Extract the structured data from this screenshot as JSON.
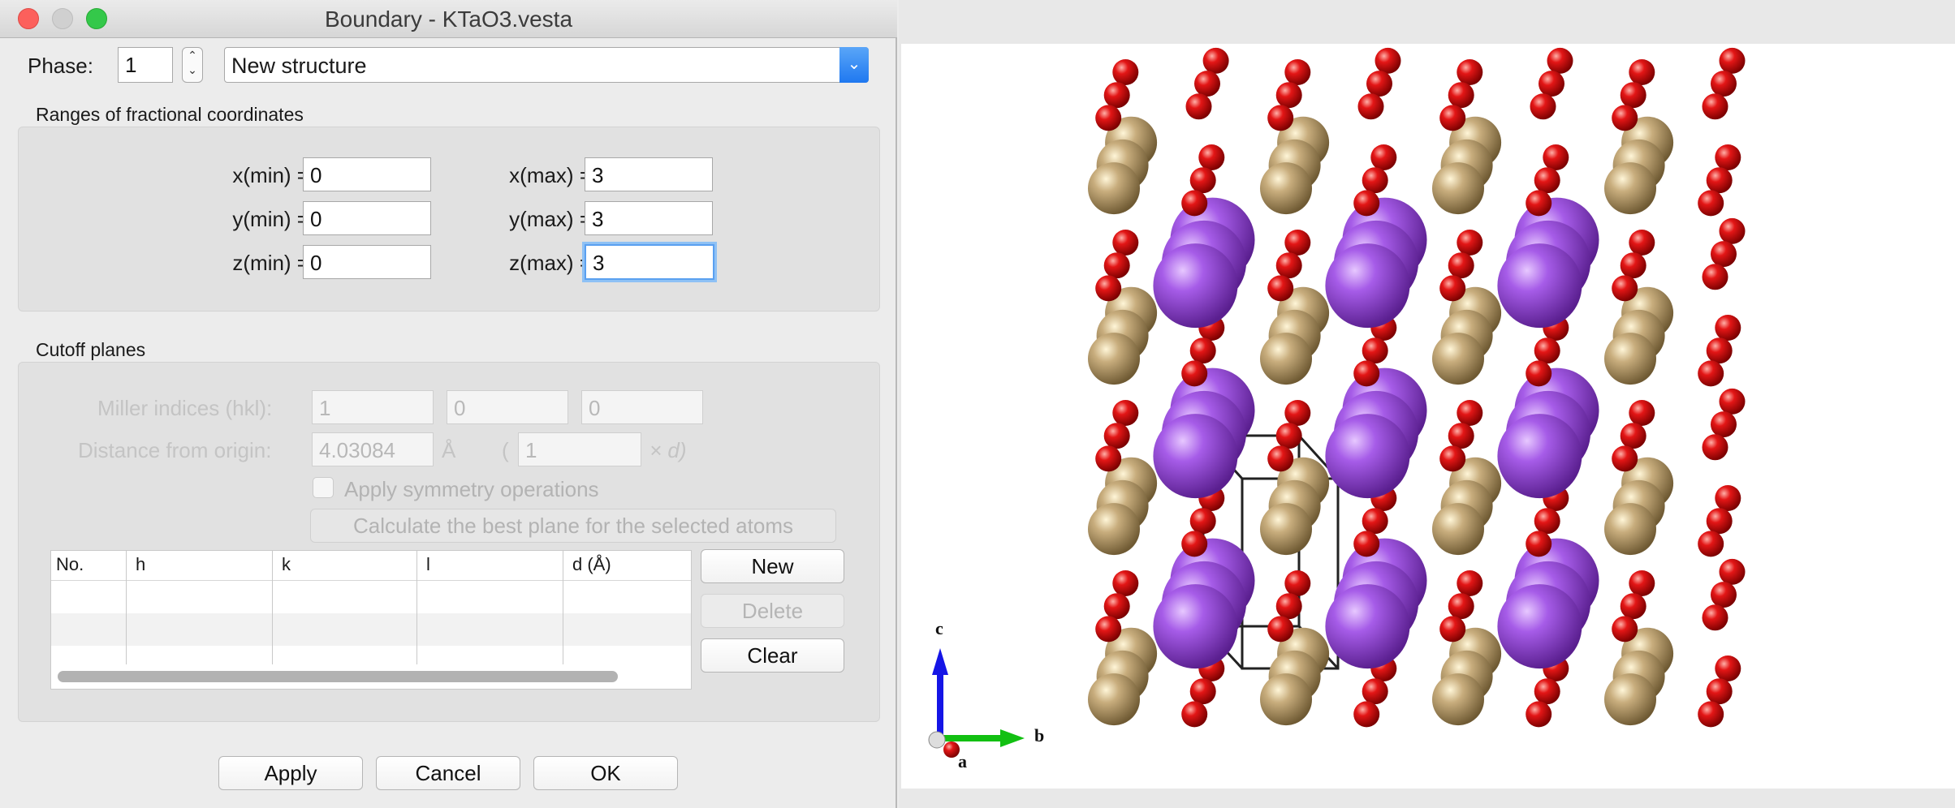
{
  "window": {
    "title": "Boundary - KTaO3.vesta"
  },
  "phase": {
    "label": "Phase:",
    "value": "1",
    "structure": "New structure"
  },
  "ranges": {
    "group_label": "Ranges of fractional coordinates",
    "x_min_label": "x(min) =",
    "x_min": "0",
    "x_max_label": "x(max) =",
    "x_max": "3",
    "y_min_label": "y(min) =",
    "y_min": "0",
    "y_max_label": "y(max) =",
    "y_max": "3",
    "z_min_label": "z(min) =",
    "z_min": "0",
    "z_max_label": "z(max) =",
    "z_max": "3"
  },
  "cutoff": {
    "group_label": "Cutoff planes",
    "miller_label": "Miller indices (hkl):",
    "h": "1",
    "k": "0",
    "l": "0",
    "distance_label": "Distance from origin:",
    "distance": "4.03084",
    "distance_unit": "Å",
    "paren_open": "(",
    "multiplier": "1",
    "multiplier_suffix": "× d)",
    "symmetry_label": "Apply symmetry operations",
    "calc_button": "Calculate the best plane for the selected atoms",
    "table_headers": [
      "No.",
      "h",
      "k",
      "l",
      "d (Å)"
    ],
    "new_button": "New",
    "delete_button": "Delete",
    "clear_button": "Clear"
  },
  "footer": {
    "apply": "Apply",
    "cancel": "Cancel",
    "ok": "OK"
  },
  "axes": {
    "c": "c",
    "b": "b",
    "a": "a"
  },
  "colors": {
    "ta_atom": "#8a3fd0",
    "k_atom": "#bfa67a",
    "o_atom": "#e01010",
    "accent_blue": "#1f78f0"
  }
}
